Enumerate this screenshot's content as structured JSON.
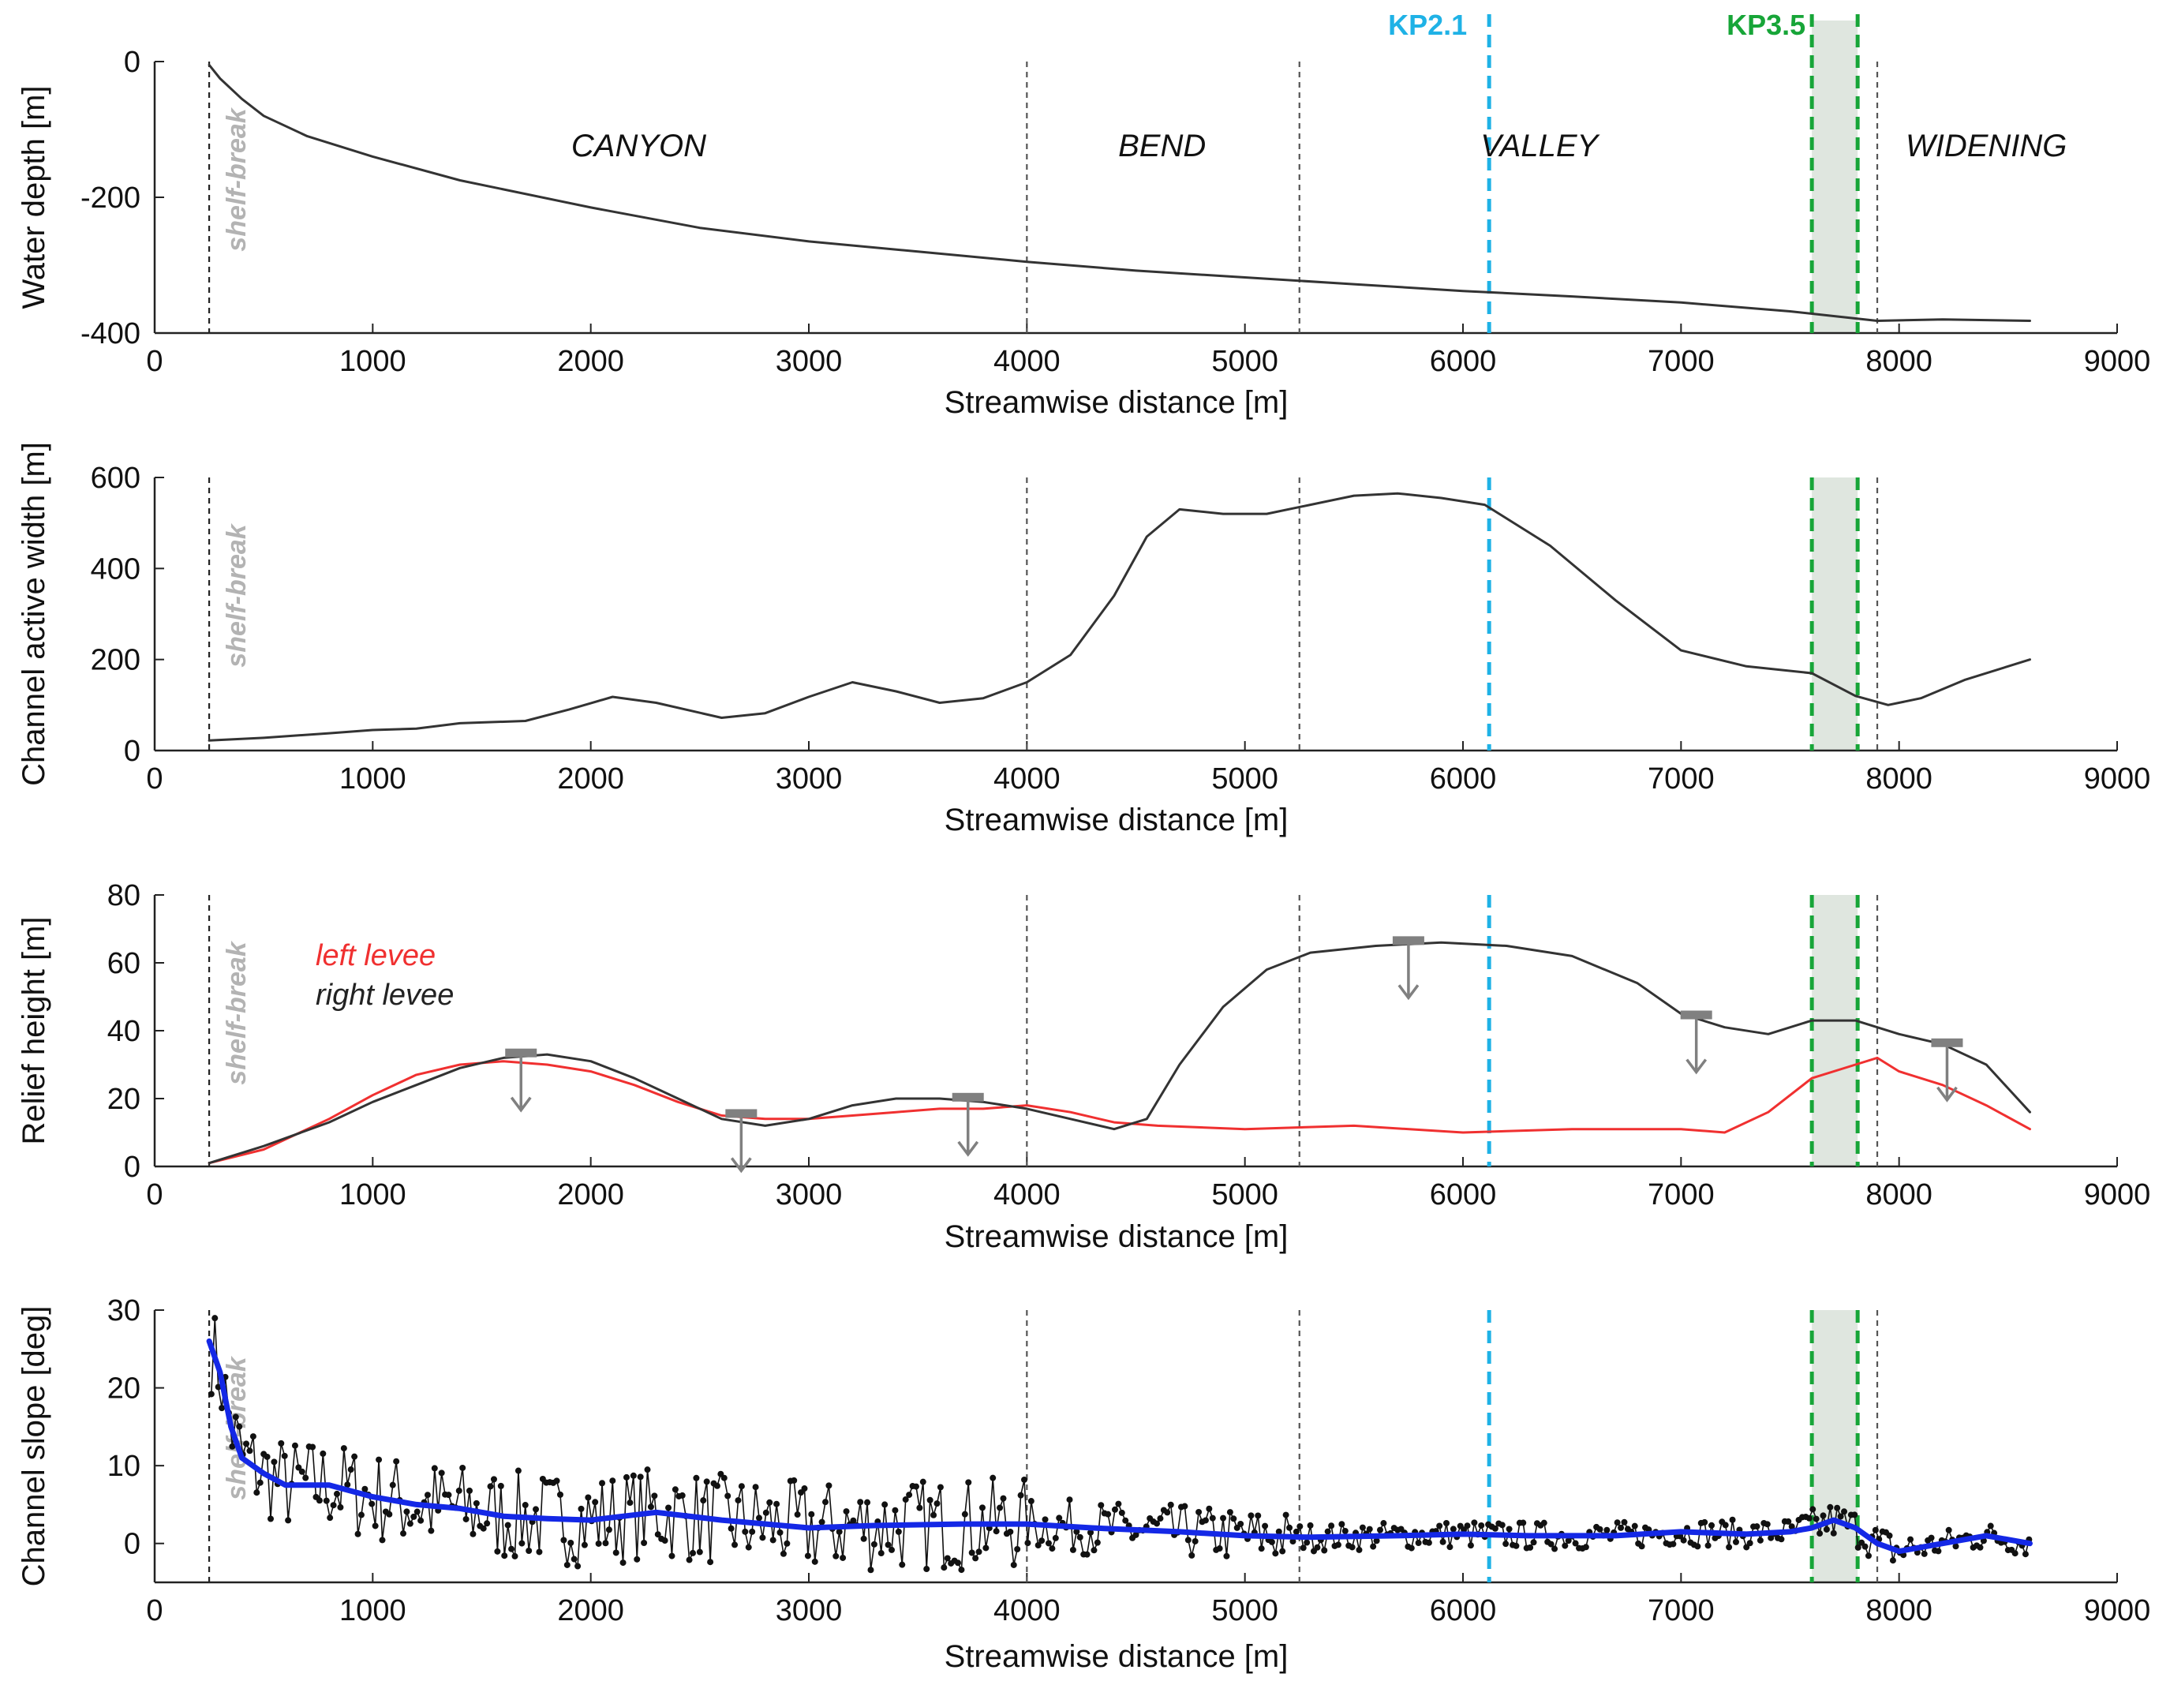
{
  "colors": {
    "kp21": "#1fb2e6",
    "kp35": "#17a538",
    "shade": "#dfe6df",
    "left_levee": "#f03030",
    "right_levee": "#333333",
    "trend": "#1428e6",
    "points": "#111111",
    "arrow": "#808080"
  },
  "xaxis": {
    "label": "Streamwise distance [m]",
    "range": [
      0,
      9000
    ],
    "ticks": [
      0,
      1000,
      2000,
      3000,
      4000,
      5000,
      6000,
      7000,
      8000,
      9000
    ]
  },
  "markers": {
    "shelf_break_x": 250,
    "shelf_break_label": "shelf-break",
    "boundaries": [
      4000,
      5250,
      7900
    ],
    "kp21": {
      "label": "KP2.1",
      "x": 6120
    },
    "kp35": {
      "label": "KP3.5",
      "x": 7600,
      "x2": 7810
    },
    "shaded_band": [
      7600,
      7810
    ]
  },
  "regions": [
    {
      "label": "CANYON",
      "x": 2220
    },
    {
      "label": "BEND",
      "x": 4620
    },
    {
      "label": "VALLEY",
      "x": 6350
    },
    {
      "label": "WIDENING",
      "x": 8400
    }
  ],
  "chart_data": [
    {
      "id": "depth",
      "type": "line",
      "title": "",
      "ylabel": "Water depth [m]",
      "xlabel": "Streamwise distance [m]",
      "ylim": [
        -400,
        0
      ],
      "yticks": [
        -400,
        -200,
        0
      ],
      "series": [
        {
          "name": "water depth",
          "color": "#333333",
          "x": [
            250,
            300,
            400,
            500,
            700,
            1000,
            1400,
            2000,
            2500,
            3000,
            3500,
            4000,
            4500,
            5000,
            5500,
            6000,
            6500,
            7000,
            7500,
            7700,
            7900,
            8200,
            8600
          ],
          "y": [
            -5,
            -25,
            -55,
            -80,
            -110,
            -140,
            -175,
            -215,
            -245,
            -265,
            -280,
            -295,
            -308,
            -318,
            -328,
            -338,
            -346,
            -355,
            -368,
            -375,
            -382,
            -380,
            -382
          ]
        }
      ]
    },
    {
      "id": "width",
      "type": "line",
      "ylabel": "Channel active width [m]",
      "xlabel": "Streamwise distance [m]",
      "ylim": [
        0,
        600
      ],
      "yticks": [
        0,
        200,
        400,
        600
      ],
      "series": [
        {
          "name": "channel active width",
          "color": "#333333",
          "x": [
            250,
            500,
            800,
            1000,
            1200,
            1400,
            1700,
            1900,
            2100,
            2300,
            2600,
            2800,
            3000,
            3200,
            3400,
            3600,
            3800,
            4000,
            4200,
            4400,
            4550,
            4700,
            4900,
            5100,
            5300,
            5500,
            5700,
            5900,
            6100,
            6400,
            6700,
            7000,
            7300,
            7600,
            7800,
            7950,
            8100,
            8300,
            8600
          ],
          "y": [
            22,
            28,
            38,
            45,
            48,
            60,
            65,
            90,
            118,
            105,
            72,
            82,
            118,
            150,
            130,
            105,
            115,
            150,
            210,
            340,
            470,
            530,
            520,
            520,
            540,
            560,
            565,
            555,
            540,
            450,
            330,
            220,
            185,
            170,
            120,
            100,
            115,
            155,
            200
          ]
        }
      ]
    },
    {
      "id": "relief",
      "type": "line",
      "ylabel": "Relief height [m]",
      "xlabel": "Streamwise distance [m]",
      "ylim": [
        0,
        80
      ],
      "yticks": [
        0,
        20,
        40,
        60,
        80
      ],
      "legend": [
        "left levee",
        "right levee"
      ],
      "series": [
        {
          "name": "left levee",
          "color": "#f03030",
          "x": [
            250,
            500,
            800,
            1000,
            1200,
            1400,
            1600,
            1800,
            2000,
            2200,
            2400,
            2600,
            2800,
            3000,
            3200,
            3400,
            3600,
            3800,
            4000,
            4200,
            4400,
            4600,
            5000,
            5500,
            6000,
            6500,
            7000,
            7200,
            7400,
            7600,
            7800,
            7900,
            8000,
            8200,
            8400,
            8600
          ],
          "y": [
            1,
            5,
            14,
            21,
            27,
            30,
            31,
            30,
            28,
            24,
            19,
            15,
            14,
            14,
            15,
            16,
            17,
            17,
            18,
            16,
            13,
            12,
            11,
            12,
            10,
            11,
            11,
            10,
            16,
            26,
            30,
            32,
            28,
            24,
            18,
            11
          ]
        },
        {
          "name": "right levee",
          "color": "#333333",
          "x": [
            250,
            500,
            800,
            1000,
            1200,
            1400,
            1600,
            1800,
            2000,
            2200,
            2400,
            2600,
            2800,
            3000,
            3200,
            3400,
            3600,
            3800,
            4000,
            4200,
            4400,
            4550,
            4700,
            4900,
            5100,
            5300,
            5600,
            5900,
            6200,
            6500,
            6800,
            7000,
            7200,
            7400,
            7600,
            7800,
            8000,
            8200,
            8400,
            8600
          ],
          "y": [
            1,
            6,
            13,
            19,
            24,
            29,
            32,
            33,
            31,
            26,
            20,
            14,
            12,
            14,
            18,
            20,
            20,
            19,
            17,
            14,
            11,
            14,
            30,
            47,
            58,
            63,
            65,
            66,
            65,
            62,
            54,
            45,
            41,
            39,
            43,
            43,
            39,
            36,
            30,
            16
          ]
        }
      ],
      "arrows": [
        1680,
        2690,
        3730,
        5750,
        7070,
        8220
      ]
    },
    {
      "id": "slope",
      "type": "line",
      "ylabel": "Channel slope [deg]",
      "xlabel": "Streamwise distance [m]",
      "ylim": [
        -5,
        30
      ],
      "yticks": [
        0,
        10,
        20,
        30
      ],
      "series": [
        {
          "name": "smoothed slope",
          "color": "#1428e6",
          "x": [
            250,
            300,
            350,
            400,
            500,
            600,
            800,
            1000,
            1200,
            1400,
            1600,
            1800,
            2000,
            2300,
            2600,
            3000,
            3300,
            3700,
            4000,
            4300,
            4700,
            5000,
            5300,
            5700,
            6000,
            6300,
            6700,
            7000,
            7300,
            7500,
            7600,
            7700,
            7800,
            7900,
            8000,
            8200,
            8400,
            8600
          ],
          "y": [
            26,
            22,
            15,
            11,
            9,
            7.5,
            7.5,
            6,
            5,
            4.5,
            3.5,
            3.2,
            3,
            4,
            3,
            2,
            2.3,
            2.5,
            2.5,
            2,
            1.5,
            1,
            0.8,
            1,
            1.2,
            1,
            1,
            1.5,
            1.2,
            1.5,
            2,
            3,
            2,
            0,
            -1,
            0,
            1,
            0
          ]
        },
        {
          "name": "raw slope",
          "color": "#111111",
          "x": [],
          "y": []
        }
      ]
    }
  ]
}
